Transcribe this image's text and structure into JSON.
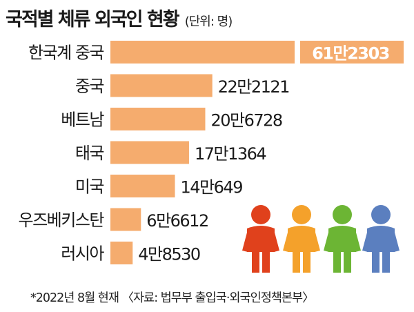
{
  "title": "국적별 체류 외국인 현황",
  "unit": "(단위: 명)",
  "source": "*2022년 8월 현재 〈자료: 법무부 출입국·외국인정책본부〉",
  "colors": {
    "bar": "#f5ac6e",
    "highlight_bar": "#f5ac6e",
    "highlight_text": "#ffffff",
    "people": [
      "#e0411c",
      "#f4a12b",
      "#6cb534",
      "#5b7fbf"
    ]
  },
  "chart_data": {
    "type": "bar",
    "orientation": "horizontal",
    "title": "국적별 체류 외국인 현황",
    "unit": "(단위: 명)",
    "categories": [
      "한국계 중국",
      "중국",
      "베트남",
      "태국",
      "미국",
      "우즈베키스탄",
      "러시아"
    ],
    "values": [
      612303,
      222121,
      206728,
      171364,
      140649,
      66612,
      48530
    ],
    "value_labels": [
      "61만2303",
      "22만2121",
      "20만6728",
      "17만1364",
      "14만649",
      "6만6612",
      "4만8530"
    ],
    "axis_break": true,
    "highlight_index": 0
  },
  "decor": {
    "people_icons": [
      "person-red-icon",
      "person-orange-icon",
      "person-green-icon",
      "person-blue-icon"
    ]
  }
}
